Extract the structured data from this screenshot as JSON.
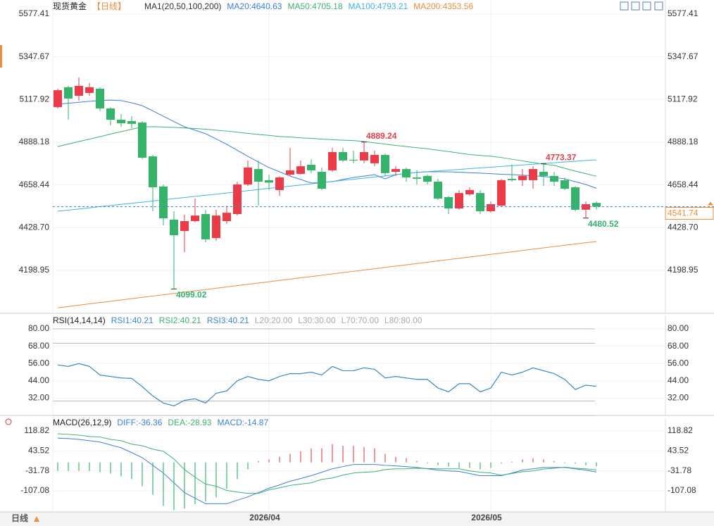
{
  "chart_data": [
    {
      "type": "candlestick",
      "title": "现货黄金",
      "period": "【日线】",
      "indicator": "MA1(20,50,100,200)",
      "open": [
        5077,
        5184,
        5138,
        5153,
        5176,
        5070,
        5009,
        5002,
        4994,
        4812,
        4650,
        4472,
        4411,
        4464,
        4502,
        4373,
        4464,
        4502,
        4661,
        4744,
        4684,
        4631,
        4714,
        4718,
        4767,
        4729,
        4737,
        4835,
        4794,
        4790,
        4775,
        4820,
        4729,
        4744,
        4699,
        4707,
        4676,
        4593,
        4532,
        4608,
        4615,
        4517,
        4547,
        4691,
        4684,
        4684,
        4729,
        4707,
        4684,
        4646,
        4525,
        4562
      ],
      "high": [
        5176,
        5191,
        5237,
        5206,
        5184,
        5077,
        5040,
        5028,
        5002,
        4820,
        4661,
        4517,
        4498,
        4585,
        4525,
        4525,
        4547,
        4676,
        4790,
        4790,
        4714,
        4706,
        4858,
        4790,
        4797,
        4752,
        4858,
        4858,
        4843,
        4889.24,
        4843,
        4828,
        4760,
        4752,
        4737,
        4714,
        4691,
        4600,
        4631,
        4646,
        4631,
        4570,
        4691,
        4767,
        4744,
        4760,
        4773.37,
        4729,
        4699,
        4653,
        4570,
        4570
      ],
      "low": [
        5070,
        5009,
        5112,
        5138,
        5055,
        4979,
        4972,
        4964,
        4797,
        4517,
        4441,
        4099.02,
        4297,
        4457,
        4350,
        4358,
        4449,
        4494,
        4653,
        4547,
        4631,
        4600,
        4706,
        4714,
        4722,
        4631,
        4729,
        4782,
        4775,
        4775,
        4760,
        4706,
        4706,
        4676,
        4661,
        4661,
        4578,
        4502,
        4525,
        4600,
        4502,
        4509,
        4540,
        4676,
        4653,
        4638,
        4653,
        4653,
        4631,
        4517,
        4480.52,
        4525
      ],
      "close": [
        5168,
        5123,
        5191,
        5184,
        5070,
        5009,
        4990,
        4987,
        4805,
        4646,
        4479,
        4388,
        4464,
        4494,
        4366,
        4494,
        4509,
        4661,
        4752,
        4676,
        4671,
        4699,
        4737,
        4759,
        4737,
        4638,
        4835,
        4790,
        4790,
        4835,
        4820,
        4722,
        4744,
        4699,
        4692,
        4676,
        4585,
        4532,
        4615,
        4631,
        4517,
        4555,
        4684,
        4684,
        4707,
        4744,
        4707,
        4676,
        4638,
        4525,
        4555,
        4541.74
      ],
      "up_color": "#eb3b48",
      "down_color": "#35b36b",
      "last_price_color": "#f08c3c",
      "ylim": [
        3968,
        5653
      ],
      "yticks": [
        5577.41,
        5347.67,
        5117.92,
        4888.18,
        4658.44,
        {
          "value": 4428.7,
          "label": "4428.70"
        },
        4198.95
      ],
      "xticks": [
        {
          "value": 20,
          "label": "2026/04"
        },
        {
          "value": 41,
          "label": "2026/05"
        }
      ],
      "series": [
        {
          "name": "MA20:4640.63",
          "color": "#3d7fd9",
          "values": [
            5093,
            5098,
            5103,
            5108,
            5112,
            5115,
            5112,
            5100,
            5085,
            5057,
            5028,
            4999,
            4971,
            4953,
            4934,
            4906,
            4877,
            4845,
            4812,
            4782,
            4752,
            4729,
            4706,
            4688,
            4669,
            4672,
            4676,
            4688,
            4699,
            4706,
            4714,
            4691,
            4714,
            4720,
            4726,
            4729,
            4729,
            4729,
            4727,
            4724,
            4722,
            4719,
            4716,
            4714,
            4711,
            4708,
            4704,
            4699,
            4691,
            4676,
            4661,
            4640.63
          ]
        },
        {
          "name": "MA50:4705.18",
          "color": "#3cb371",
          "values": [
            4865,
            4878,
            4892,
            4905,
            4918,
            4932,
            4945,
            4958,
            4971,
            4972,
            4970,
            4968,
            4965,
            4962,
            4958,
            4953,
            4948,
            4942,
            4936,
            4930,
            4925,
            4919,
            4916,
            4912,
            4909,
            4905,
            4902,
            4899,
            4897,
            4892,
            4885,
            4878,
            4871,
            4865,
            4859,
            4853,
            4845,
            4838,
            4830,
            4822,
            4817,
            4813,
            4806,
            4797,
            4788,
            4779,
            4770,
            4764,
            4748,
            4733,
            4719,
            4705.18
          ]
        },
        {
          "name": "MA100:4793.21",
          "color": "#3fb4e6",
          "values": [
            4517,
            4523,
            4529,
            4535,
            4542,
            4548,
            4554,
            4560,
            4566,
            4572,
            4578,
            4585,
            4591,
            4597,
            4603,
            4609,
            4615,
            4621,
            4628,
            4634,
            4640,
            4646,
            4652,
            4658,
            4664,
            4671,
            4677,
            4683,
            4689,
            4695,
            4701,
            4707,
            4714,
            4720,
            4726,
            4730,
            4734,
            4738,
            4742,
            4746,
            4750,
            4754,
            4758,
            4762,
            4766,
            4770,
            4774,
            4778,
            4782,
            4786,
            4790,
            4793.21
          ]
        },
        {
          "name": "MA200:4353.56",
          "color": "#f08c3c",
          "values": [
            3998,
            4005,
            4012,
            4019,
            4026,
            4033,
            4040,
            4047,
            4054,
            4061,
            4068,
            4075,
            4082,
            4089,
            4096,
            4103,
            4110,
            4117,
            4124,
            4131,
            4138,
            4145,
            4152,
            4159,
            4166,
            4173,
            4180,
            4187,
            4194,
            4201,
            4208,
            4215,
            4222,
            4229,
            4236,
            4243,
            4250,
            4257,
            4264,
            4271,
            4278,
            4285,
            4292,
            4299,
            4306,
            4313,
            4320,
            4327,
            4334,
            4341,
            4348,
            4353.56
          ]
        }
      ],
      "annotations": [
        {
          "index": 29,
          "field": "high",
          "color": "#eb3b48"
        },
        {
          "index": 46,
          "field": "high",
          "color": "#eb3b48"
        },
        {
          "index": 11,
          "field": "low",
          "color": "#35b36b"
        },
        {
          "index": 50,
          "field": "low",
          "color": "#35b36b"
        }
      ]
    },
    {
      "type": "line",
      "title": "RSI(14,14,14)",
      "ylim": [
        20,
        89.3
      ],
      "yticks": [
        {
          "value": 80,
          "label": "80.00"
        },
        {
          "value": 68,
          "label": "68.00"
        },
        {
          "value": 56,
          "label": "56.00"
        },
        {
          "value": 44,
          "label": "44.00"
        },
        {
          "value": 32,
          "label": "32.00"
        }
      ],
      "levels": [
        {
          "value": 20,
          "label": "L20:20.00"
        },
        {
          "value": 30,
          "label": "L30:30.00"
        },
        {
          "value": 70,
          "label": "L70:70.00"
        },
        {
          "value": 80,
          "label": "L80:80.00"
        }
      ],
      "series": [
        {
          "name": "RSI1:40.21",
          "color": "#3d86d9",
          "values": [
            55,
            54,
            56,
            54,
            48,
            47,
            46,
            45.7,
            40,
            33.5,
            28.6,
            26.6,
            30.5,
            31.5,
            28.6,
            35.4,
            37,
            44,
            47,
            45,
            44,
            47,
            49,
            49,
            50,
            48,
            54,
            51,
            51,
            53,
            52,
            46,
            47,
            46,
            45,
            45,
            39,
            36.4,
            42,
            42,
            36.4,
            39,
            50,
            48,
            50,
            53,
            51,
            49,
            45,
            38,
            41,
            40.21
          ]
        },
        {
          "name": "RSI2:40.21",
          "color": "#3cb371",
          "values": [
            55,
            54,
            56,
            54,
            48,
            47,
            46,
            45.7,
            40,
            33.5,
            28.6,
            26.6,
            30.5,
            31.5,
            28.6,
            35.4,
            37,
            44,
            47,
            45,
            44,
            47,
            49,
            49,
            50,
            48,
            54,
            51,
            51,
            53,
            52,
            46,
            47,
            46,
            45,
            45,
            39,
            36.4,
            42,
            42,
            36.4,
            39,
            50,
            48,
            50,
            53,
            51,
            49,
            45,
            38,
            41,
            40.21
          ]
        },
        {
          "name": "RSI3:40.21",
          "color": "#3d86d9",
          "values": [
            55,
            54,
            56,
            54,
            48,
            47,
            46,
            45.7,
            40,
            33.5,
            28.6,
            26.6,
            30.5,
            31.5,
            28.6,
            35.4,
            37,
            44,
            47,
            45,
            44,
            47,
            49,
            49,
            50,
            48,
            54,
            51,
            51,
            53,
            52,
            46,
            47,
            46,
            45,
            45,
            39,
            36.4,
            42,
            42,
            36.4,
            39,
            50,
            48,
            50,
            53,
            51,
            49,
            45,
            38,
            41,
            40.21
          ]
        }
      ]
    },
    {
      "type": "macd",
      "title": "MACD(26,12,9)",
      "ylim": [
        -187,
        164
      ],
      "yticks": [
        118.82,
        43.52,
        -31.78,
        -107.08
      ],
      "series": [
        {
          "name": "DIFF:-36.36",
          "color": "#3d7fd9",
          "kind": "line",
          "values": [
            92,
            90,
            87,
            82,
            77,
            66,
            55,
            37,
            18,
            -11,
            -40,
            -77,
            -114,
            -135,
            -156,
            -156,
            -156,
            -143,
            -130,
            -114,
            -98,
            -85,
            -71,
            -61,
            -50,
            -37,
            -24,
            -16,
            -8,
            -8,
            -8,
            -11,
            -13,
            -16,
            -19,
            -24,
            -29,
            -32,
            -34,
            -42,
            -50,
            -50,
            -50,
            -40,
            -29,
            -24,
            -19,
            -19,
            -19,
            -24,
            -29,
            -36.36
          ]
        },
        {
          "name": "DEA:-28.93",
          "color": "#3cb371",
          "kind": "line",
          "values": [
            108,
            106,
            103,
            98,
            96,
            87,
            82,
            69,
            63,
            50,
            42,
            13,
            -27,
            -56,
            -82,
            -90,
            -106,
            -112,
            -117,
            -117,
            -104,
            -96,
            -87,
            -82,
            -77,
            -64,
            -59,
            -48,
            -40,
            -37,
            -35,
            -27,
            -24,
            -24,
            -22,
            -23,
            -24,
            -24,
            -24,
            -32,
            -37,
            -40,
            -48,
            -42,
            -35,
            -32,
            -25,
            -22,
            -18,
            -22,
            -24,
            -28.93
          ]
        },
        {
          "name": "MACD:-14.87",
          "color": "#3d7fd9",
          "kind": "bar",
          "up_color": "#e8505b",
          "down_color": "#3cb371",
          "values": [
            -32,
            -32,
            -32,
            -32,
            -37,
            -42,
            -53,
            -63,
            -90,
            -122,
            -164,
            -180,
            -174,
            -158,
            -148,
            -132,
            -100,
            -63,
            -26,
            5,
            11,
            21,
            32,
            42,
            53,
            53,
            69,
            63,
            63,
            58,
            53,
            32,
            21,
            16,
            5,
            -3,
            -11,
            -16,
            -21,
            -21,
            -26,
            -21,
            -5,
            3,
            11,
            16,
            11,
            5,
            -3,
            -5,
            -11,
            -14.87
          ]
        }
      ]
    }
  ],
  "footer": {
    "period_button": "日线"
  }
}
